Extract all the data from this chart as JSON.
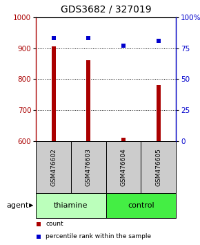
{
  "title": "GDS3682 / 327019",
  "samples": [
    "GSM476602",
    "GSM476603",
    "GSM476604",
    "GSM476605"
  ],
  "counts": [
    905,
    860,
    610,
    780
  ],
  "percentiles": [
    83,
    83,
    77,
    81
  ],
  "ylim_left": [
    600,
    1000
  ],
  "ylim_right": [
    0,
    100
  ],
  "yticks_left": [
    600,
    700,
    800,
    900,
    1000
  ],
  "yticks_right": [
    0,
    25,
    50,
    75,
    100
  ],
  "bar_color": "#aa0000",
  "dot_color": "#0000cc",
  "bar_width": 0.12,
  "groups": [
    {
      "label": "thiamine",
      "color": "#bbffbb"
    },
    {
      "label": "control",
      "color": "#44ee44"
    }
  ],
  "agent_label": "agent",
  "legend_items": [
    {
      "label": "count",
      "color": "#aa0000"
    },
    {
      "label": "percentile rank within the sample",
      "color": "#0000cc"
    }
  ],
  "title_fontsize": 10,
  "tick_fontsize": 7.5,
  "sample_fontsize": 6.5,
  "group_fontsize": 8,
  "legend_fontsize": 6.5,
  "gray_color": "#cccccc",
  "gray_edge": "#888888"
}
